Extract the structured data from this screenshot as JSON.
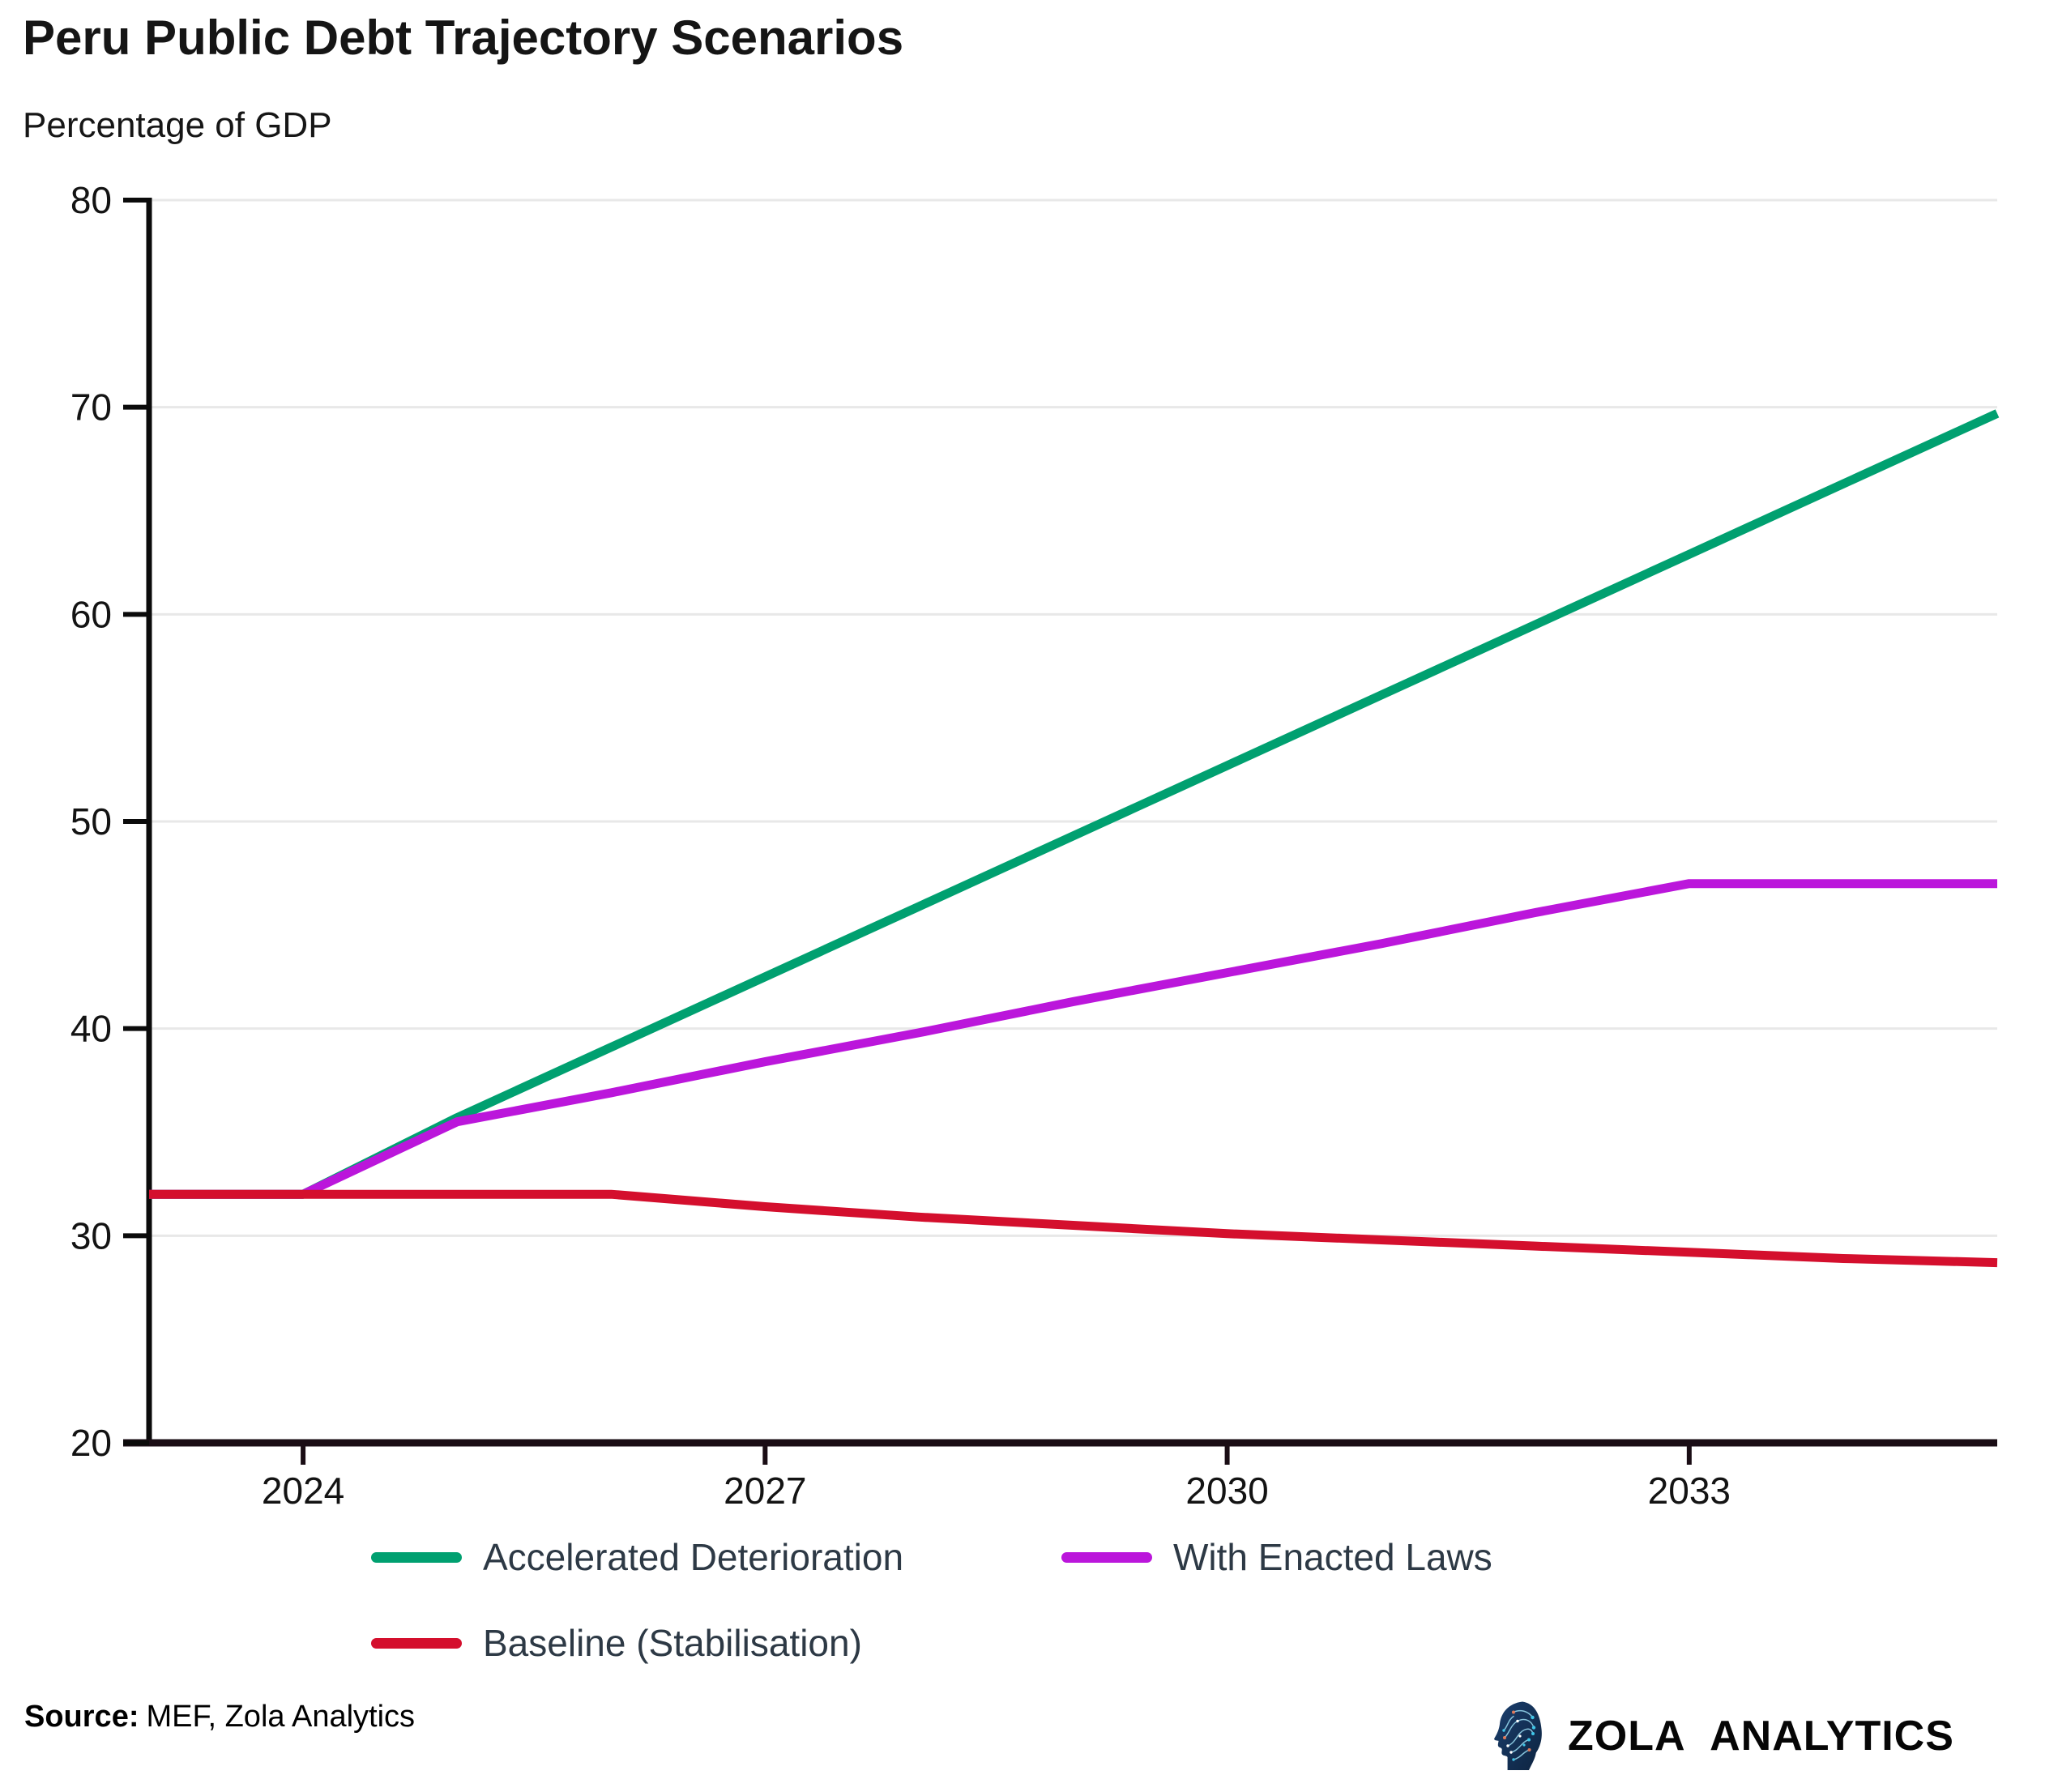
{
  "header": {
    "title": "Peru Public Debt Trajectory Scenarios",
    "subtitle": "Percentage of GDP"
  },
  "chart_data": {
    "type": "line",
    "title": "Peru Public Debt Trajectory Scenarios",
    "ylabel": "Percentage of GDP",
    "xlabel": "",
    "x": [
      2023,
      2024,
      2025,
      2026,
      2027,
      2028,
      2029,
      2030,
      2031,
      2032,
      2033,
      2034,
      2035
    ],
    "series": [
      {
        "name": "Accelerated Deterioration",
        "color": "#00A070",
        "values": [
          32,
          32,
          35.7,
          39.1,
          42.5,
          45.9,
          49.3,
          52.7,
          56.1,
          59.5,
          62.9,
          66.3,
          69.7
        ]
      },
      {
        "name": "With Enacted Laws",
        "color": "#BB16DB",
        "values": [
          32,
          32,
          35.5,
          36.9,
          38.4,
          39.8,
          41.3,
          42.7,
          44.1,
          45.6,
          47,
          47,
          47
        ]
      },
      {
        "name": "Baseline (Stabilisation)",
        "color": "#D40F2D",
        "values": [
          32,
          32,
          32,
          32,
          31.4,
          30.9,
          30.5,
          30.1,
          29.8,
          29.5,
          29.2,
          28.9,
          28.7
        ]
      }
    ],
    "xlim": [
      2023,
      2035
    ],
    "ylim": [
      20,
      80
    ],
    "yticks": [
      20,
      30,
      40,
      50,
      60,
      70,
      80
    ],
    "xticks": [
      2024,
      2027,
      2030,
      2033
    ],
    "grid": "horizontal",
    "legend_position": "bottom"
  },
  "footer": {
    "source_label": "Source:",
    "source_text": "MEF, Zola Analytics"
  },
  "logo": {
    "text": "ZOLA ANALYTICS",
    "icon": "circuit-head-icon"
  }
}
